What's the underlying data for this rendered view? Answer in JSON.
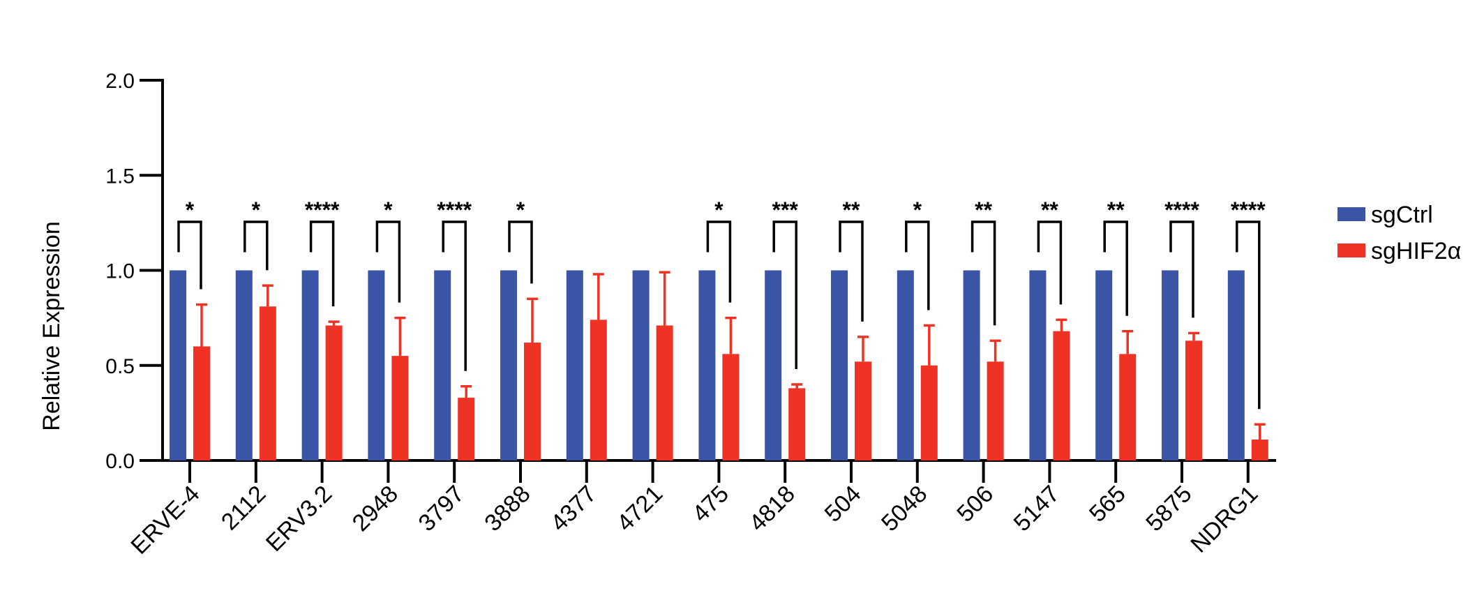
{
  "chart_data": {
    "type": "bar",
    "ylabel": "Relative Expression",
    "ylim": [
      0,
      2.0
    ],
    "yticks": [
      "0.0",
      "0.5",
      "1.0",
      "1.5",
      "2.0"
    ],
    "categories": [
      "ERVE-4",
      "2112",
      "ERV3.2",
      "2948",
      "3797",
      "3888",
      "4377",
      "4721",
      "475",
      "4818",
      "504",
      "5048",
      "506",
      "5147",
      "565",
      "5875",
      "NDRG1"
    ],
    "series": [
      {
        "name": "sgCtrl",
        "color": "#3b55a6",
        "values": [
          1.0,
          1.0,
          1.0,
          1.0,
          1.0,
          1.0,
          1.0,
          1.0,
          1.0,
          1.0,
          1.0,
          1.0,
          1.0,
          1.0,
          1.0,
          1.0,
          1.0
        ],
        "errors": [
          0,
          0,
          0,
          0,
          0,
          0,
          0,
          0,
          0,
          0,
          0,
          0,
          0,
          0,
          0,
          0,
          0
        ]
      },
      {
        "name": "sgHIF2α",
        "color": "#ee3224",
        "values": [
          0.6,
          0.81,
          0.71,
          0.55,
          0.33,
          0.62,
          0.74,
          0.71,
          0.56,
          0.38,
          0.52,
          0.5,
          0.52,
          0.68,
          0.56,
          0.63,
          0.11
        ],
        "errors": [
          0.22,
          0.11,
          0.02,
          0.2,
          0.06,
          0.23,
          0.24,
          0.28,
          0.19,
          0.02,
          0.13,
          0.21,
          0.11,
          0.06,
          0.12,
          0.04,
          0.08
        ]
      }
    ],
    "significance": [
      "*",
      "*",
      "****",
      "*",
      "****",
      "*",
      "",
      "",
      "*",
      "***",
      "**",
      "*",
      "**",
      "**",
      "**",
      "****",
      "****"
    ],
    "grid": false,
    "legend_position": "right"
  }
}
